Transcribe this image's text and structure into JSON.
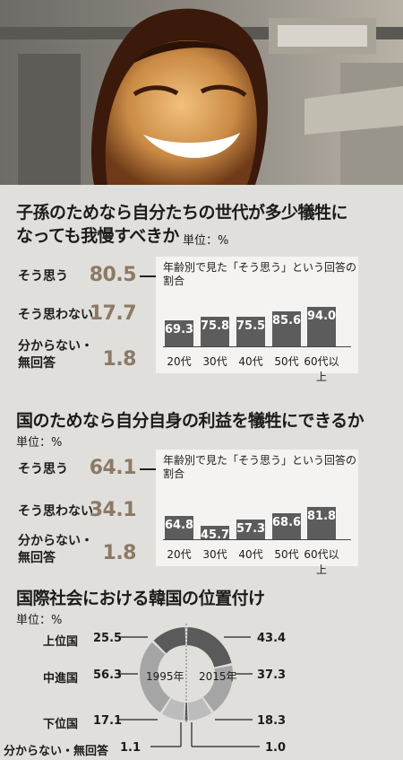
{
  "chart_data": [
    {
      "type": "bar",
      "title": "子孫のためなら自分たちの世代が多少犠牲に",
      "title_line2": "なっても我慢すべきか",
      "unit": "単位：%",
      "responses": [
        {
          "label": "そう思う",
          "value": "80.5"
        },
        {
          "label": "そう思わない",
          "value": "17.7"
        },
        {
          "label": "分からない・",
          "label2": "無回答",
          "value": "1.8"
        }
      ],
      "age_title": "年齢別で見た「そう思う」という回答の",
      "age_title2": "割合",
      "categories": [
        "20代",
        "30代",
        "40代",
        "50代",
        "60代以上"
      ],
      "values": [
        69.3,
        75.8,
        75.5,
        85.6,
        94.0
      ],
      "value_labels": [
        "69.3",
        "75.8",
        "75.5",
        "85.6",
        "94.0"
      ]
    },
    {
      "type": "bar",
      "title": "国のためなら自分自身の利益を犠牲にできるか",
      "unit": "単位：%",
      "responses": [
        {
          "label": "そう思う",
          "value": "64.1"
        },
        {
          "label": "そう思わない",
          "value": "34.1"
        },
        {
          "label": "分からない・",
          "label2": "無回答",
          "value": "1.8"
        }
      ],
      "age_title": "年齢別で見た「そう思う」という回答の",
      "age_title2": "割合",
      "categories": [
        "20代",
        "30代",
        "40代",
        "50代",
        "60代以上"
      ],
      "values": [
        64.8,
        45.7,
        57.3,
        68.6,
        81.8
      ],
      "value_labels": [
        "64.8",
        "45.7",
        "57.3",
        "68.6",
        "81.8"
      ]
    },
    {
      "type": "pie",
      "title": "国際社会における韓国の位置付け",
      "unit": "単位：%",
      "categories": [
        "上位国",
        "中進国",
        "下位国",
        "分からない・無回答"
      ],
      "series": [
        {
          "name": "1995年",
          "values": [
            25.5,
            56.3,
            17.1,
            1.1
          ],
          "value_labels": [
            "25.5",
            "56.3",
            "17.1",
            "1.1"
          ]
        },
        {
          "name": "2015年",
          "values": [
            43.4,
            37.3,
            18.3,
            1.0
          ],
          "value_labels": [
            "43.4",
            "37.3",
            "18.3",
            "1.0"
          ]
        }
      ],
      "colors": [
        "#5a5a5a",
        "#a5a5a5",
        "#bcbcbc",
        "#2a2a2a"
      ]
    }
  ]
}
